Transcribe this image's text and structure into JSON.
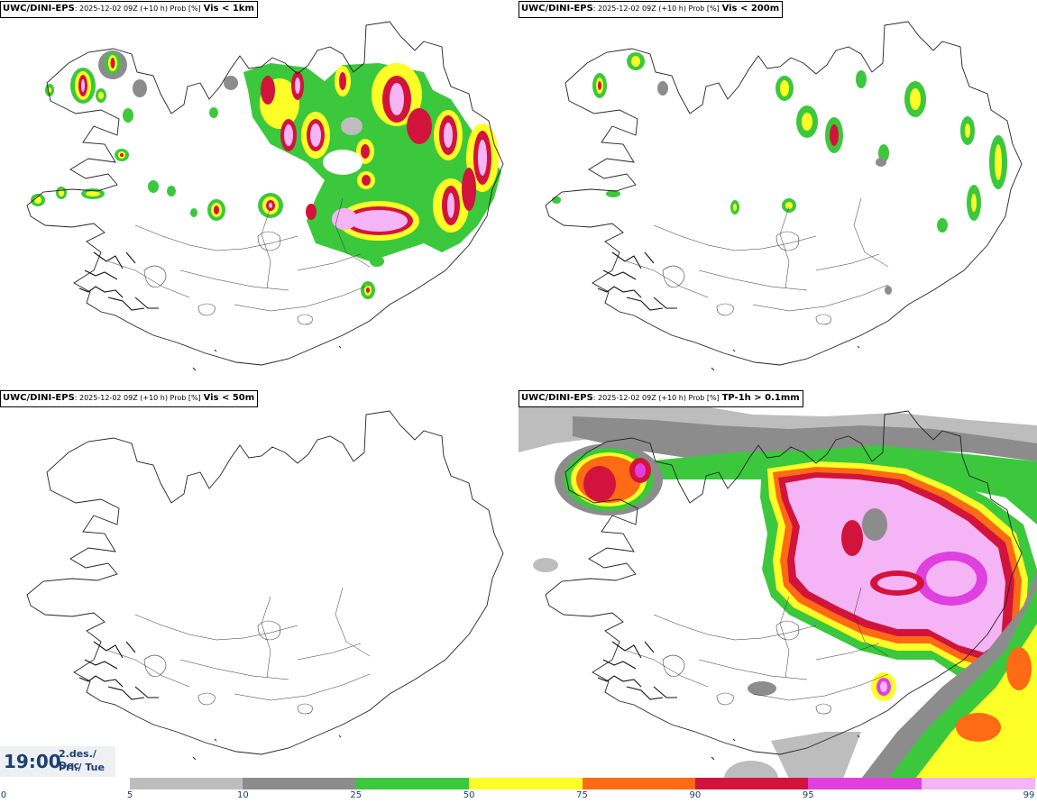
{
  "panels": [
    {
      "source": "UWC/DINI-EPS",
      "run": ": 2025-12-02 09Z (+10 h) Prob [%]",
      "variable": "Vis < 1km"
    },
    {
      "source": "UWC/DINI-EPS",
      "run": ": 2025-12-02 09Z (+10 h) Prob [%]",
      "variable": "Vis < 200m"
    },
    {
      "source": "UWC/DINI-EPS",
      "run": ": 2025-12-02 09Z (+10 h) Prob [%]",
      "variable": "Vis < 50m"
    },
    {
      "source": "UWC/DINI-EPS",
      "run": ": 2025-12-02 09Z (+10 h) Prob [%]",
      "variable": "TP-1h > 0.1mm"
    }
  ],
  "valid_time": {
    "time": "19:00",
    "date": "2.des./ Dec",
    "day": "Þri./ Tue"
  },
  "legend": {
    "ticks": [
      "0",
      "5",
      "10",
      "25",
      "50",
      "75",
      "90",
      "95",
      "99"
    ],
    "colors": [
      "#bdbdbd",
      "#8c8c8c",
      "#3cc83c",
      "#ffff28",
      "#ff6a14",
      "#d2143c",
      "#e040e0",
      "#f5b4f5"
    ]
  }
}
